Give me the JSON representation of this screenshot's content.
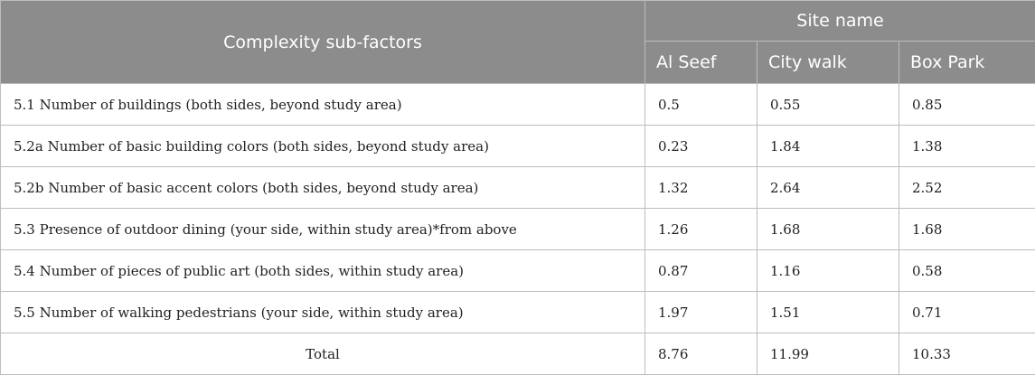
{
  "header": {
    "factor_col": "Complexity sub-factors",
    "site_group": "Site name",
    "sites": [
      "Al Seef",
      "City walk",
      "Box Park"
    ]
  },
  "rows": [
    {
      "label": "5.1 Number of buildings (both sides, beyond study area)",
      "values": [
        "0.5",
        "0.55",
        "0.85"
      ]
    },
    {
      "label": "5.2a Number of basic building colors (both sides, beyond study area)",
      "values": [
        "0.23",
        "1.84",
        "1.38"
      ]
    },
    {
      "label": "5.2b Number of basic accent colors (both sides, beyond study area)",
      "values": [
        "1.32",
        "2.64",
        "2.52"
      ]
    },
    {
      "label": "5.3 Presence of outdoor dining (your side, within study area)*from above",
      "values": [
        "1.26",
        "1.68",
        "1.68"
      ]
    },
    {
      "label": "5.4 Number of pieces of public art (both sides, within study area)",
      "values": [
        "0.87",
        "1.16",
        "0.58"
      ]
    },
    {
      "label": "5.5 Number of walking pedestrians (your side, within study area)",
      "values": [
        "1.97",
        "1.51",
        "0.71"
      ]
    }
  ],
  "total": {
    "label": "Total",
    "values": [
      "8.76",
      "11.99",
      "10.33"
    ]
  }
}
